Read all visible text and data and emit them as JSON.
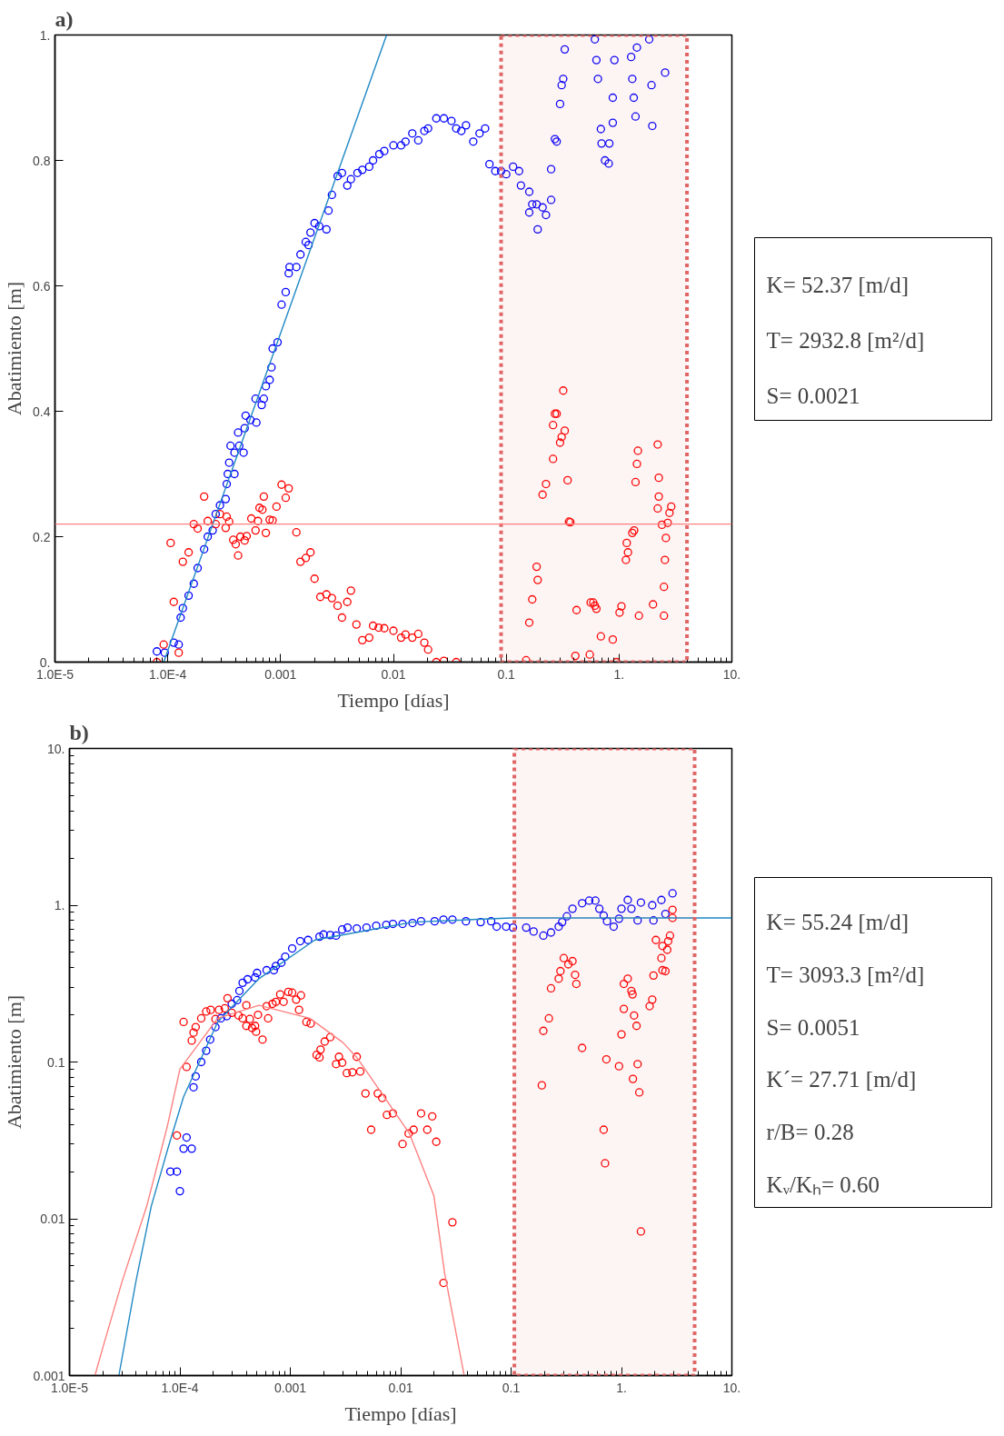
{
  "chart_data": [
    {
      "type": "scatter",
      "title": "a)",
      "xlabel": "Tiempo [días]",
      "ylabel": "Abatimiento [m]",
      "log": "x",
      "xlim": [
        1e-05,
        10
      ],
      "ylim": [
        0,
        1
      ],
      "xticks": [
        {
          "value": 1e-05,
          "label": "1.0E-5"
        },
        {
          "value": 0.0001,
          "label": "1.0E-4"
        },
        0.001,
        0.01,
        0.1,
        {
          "value": 1,
          "label": "1."
        },
        {
          "value": 10,
          "label": "10."
        }
      ],
      "yticks": [
        {
          "value": 0,
          "label": "0."
        },
        0.2,
        0.4,
        0.6,
        0.8,
        {
          "value": 1,
          "label": "1."
        }
      ],
      "series": [
        {
          "marker": "circle",
          "color": "#0000ff",
          "x": [
            8e-05,
            9.4e-05,
            0.000113,
            0.000125,
            0.00013,
            0.000136,
            0.000153,
            0.00017,
            0.000184,
            0.00021,
            0.000226,
            0.00025,
            0.000266,
            0.00029,
            0.000326,
            0.000333,
            0.00034,
            0.00035,
            0.00036,
            0.00039,
            0.00039,
            0.00043,
            0.00047,
            0.00042,
            0.00048,
            0.00049,
            0.00054,
            0.00061,
            0.0006,
            0.00068,
            0.00071,
            0.00074,
            0.0008,
            0.00083,
            0.00085,
            0.00094,
            0.00102,
            0.00111,
            0.00118,
            0.0012,
            0.00138,
            0.0015,
            0.00167,
            0.00177,
            0.00184,
            0.002,
            0.0022,
            0.00255,
            0.00266,
            0.00285,
            0.0032,
            0.0035,
            0.0039,
            0.0042,
            0.0048,
            0.0053,
            0.0061,
            0.0066,
            0.0075,
            0.0083,
            0.01,
            0.0117,
            0.0128,
            0.0147,
            0.0166,
            0.0188,
            0.0203,
            0.024,
            0.028,
            0.0327,
            0.036,
            0.04,
            0.044,
            0.051,
            0.058,
            0.065,
            0.071,
            0.08,
            0.09,
            0.1,
            0.115,
            0.13,
            0.135,
            0.16,
            0.17,
            0.186,
            0.16,
            0.21,
            0.225,
            0.19,
            0.25,
            0.25,
            0.27,
            0.28,
            0.3,
            0.31,
            0.32,
            0.33,
            0.61,
            0.63,
            0.65,
            0.69,
            0.7,
            0.75,
            0.81,
            0.82,
            0.88,
            0.88,
            0.91,
            1.28,
            1.31,
            1.35,
            1.4,
            1.44,
            1.85,
            1.94,
            1.97,
            2.56
          ],
          "values": [
            0.017,
            0.015,
            0.031,
            0.028,
            0.071,
            0.086,
            0.106,
            0.125,
            0.15,
            0.18,
            0.2,
            0.21,
            0.236,
            0.25,
            0.26,
            0.284,
            0.3,
            0.318,
            0.345,
            0.3,
            0.334,
            0.345,
            0.334,
            0.366,
            0.373,
            0.393,
            0.386,
            0.382,
            0.42,
            0.41,
            0.42,
            0.44,
            0.45,
            0.47,
            0.5,
            0.51,
            0.57,
            0.59,
            0.62,
            0.63,
            0.63,
            0.65,
            0.67,
            0.665,
            0.685,
            0.7,
            0.695,
            0.69,
            0.72,
            0.745,
            0.775,
            0.78,
            0.76,
            0.77,
            0.78,
            0.785,
            0.79,
            0.8,
            0.81,
            0.815,
            0.824,
            0.824,
            0.83,
            0.843,
            0.832,
            0.847,
            0.851,
            0.867,
            0.867,
            0.863,
            0.851,
            0.847,
            0.856,
            0.83,
            0.843,
            0.851,
            0.794,
            0.783,
            0.783,
            0.778,
            0.79,
            0.783,
            0.76,
            0.75,
            0.73,
            0.73,
            0.717,
            0.725,
            0.713,
            0.69,
            0.737,
            0.786,
            0.834,
            0.83,
            0.89,
            0.92,
            0.93,
            0.977,
            0.993,
            0.96,
            0.93,
            0.85,
            0.827,
            0.8,
            0.795,
            0.827,
            0.86,
            0.9,
            0.96,
            0.965,
            0.93,
            0.9,
            0.87,
            0.98,
            0.993,
            0.92,
            0.855,
            0.94
          ]
        },
        {
          "marker": "circle",
          "color": "#ff0000",
          "x": [
            8e-05,
            9.2e-05,
            0.000106,
            0.000113,
            0.000125,
            0.000136,
            0.000153,
            0.00017,
            0.000184,
            0.00021,
            0.000226,
            0.000266,
            0.00029,
            0.000326,
            0.000333,
            0.00035,
            0.00038,
            0.0004,
            0.00042,
            0.00044,
            0.00048,
            0.0005,
            0.00055,
            0.0006,
            0.00063,
            0.00065,
            0.00069,
            0.00071,
            0.00074,
            0.0008,
            0.00085,
            0.00092,
            0.00102,
            0.00111,
            0.00118,
            0.00138,
            0.0015,
            0.00167,
            0.00184,
            0.002,
            0.00225,
            0.00255,
            0.00285,
            0.0032,
            0.0035,
            0.0039,
            0.0042,
            0.0047,
            0.0053,
            0.0061,
            0.0066,
            0.0074,
            0.0083,
            0.01,
            0.0117,
            0.0128,
            0.0147,
            0.0166,
            0.0188,
            0.0203,
            0.024,
            0.028,
            0.036,
            0.15,
            0.16,
            0.17,
            0.19,
            0.186,
            0.21,
            0.225,
            0.26,
            0.3,
            0.31,
            0.33,
            0.26,
            0.27,
            0.28,
            0.32,
            0.35,
            0.36,
            0.37,
            0.41,
            0.42,
            0.55,
            0.56,
            0.59,
            0.61,
            0.63,
            0.69,
            0.88,
            0.95,
            1.01,
            1.05,
            1.15,
            1.2,
            1.17,
            1.31,
            1.36,
            1.4,
            1.44,
            1.47,
            1.5,
            2.0,
            2.2,
            2.25,
            2.25,
            2.2,
            2.4,
            2.7,
            2.8,
            2.9,
            2.6,
            2.55,
            2.5,
            2.5
          ],
          "values": [
            0.0,
            0.028,
            0.19,
            0.096,
            0.015,
            0.16,
            0.175,
            0.22,
            0.213,
            0.264,
            0.225,
            0.22,
            0.236,
            0.214,
            0.232,
            0.224,
            0.195,
            0.188,
            0.17,
            0.2,
            0.194,
            0.201,
            0.229,
            0.21,
            0.225,
            0.246,
            0.243,
            0.264,
            0.206,
            0.227,
            0.226,
            0.248,
            0.283,
            0.262,
            0.277,
            0.207,
            0.16,
            0.166,
            0.175,
            0.133,
            0.104,
            0.108,
            0.102,
            0.09,
            0.071,
            0.096,
            0.114,
            0.06,
            0.035,
            0.039,
            0.058,
            0.055,
            0.054,
            0.05,
            0.039,
            0.044,
            0.039,
            0.045,
            0.031,
            0.02,
            0.0,
            0.002,
            0.0,
            0.003,
            0.063,
            0.1,
            0.131,
            0.152,
            0.267,
            0.284,
            0.324,
            0.35,
            0.359,
            0.369,
            0.378,
            0.396,
            0.396,
            0.433,
            0.29,
            0.224,
            0.223,
            0.01,
            0.083,
            0.012,
            0.095,
            0.095,
            0.09,
            0.085,
            0.041,
            0.036,
            0.0,
            0.079,
            0.089,
            0.163,
            0.175,
            0.19,
            0.206,
            0.21,
            0.287,
            0.316,
            0.337,
            0.074,
            0.092,
            0.347,
            0.294,
            0.264,
            0.245,
            0.219,
            0.222,
            0.238,
            0.248,
            0.198,
            0.163,
            0.12,
            0.074
          ]
        },
        {
          "type": "line",
          "color": "#1f88c4",
          "x": [
            9.2e-05,
            0.0087
          ],
          "values": [
            0,
            1
          ]
        }
      ],
      "ref_lines": [
        {
          "axis": "y",
          "value": 0.22,
          "color": "#ff8080"
        }
      ],
      "bands": [
        {
          "axis": "x",
          "from": 0.09,
          "to": 4.0,
          "color": "#e06666"
        }
      ],
      "annotations": [
        "K= 52.37 [m/d]",
        "T= 2932.8 [m²/d]",
        "S= 0.0021"
      ]
    },
    {
      "type": "scatter",
      "title": "b)",
      "xlabel": "Tiempo [días]",
      "ylabel": "Abatimiento [m]",
      "log": "xy",
      "xlim": [
        1e-05,
        10
      ],
      "ylim": [
        0.001,
        10
      ],
      "xticks": [
        {
          "value": 1e-05,
          "label": "1.0E-5"
        },
        {
          "value": 0.0001,
          "label": "1.0E-4"
        },
        0.001,
        0.01,
        0.1,
        {
          "value": 1,
          "label": "1."
        },
        {
          "value": 10,
          "label": "10."
        }
      ],
      "yticks": [
        0.001,
        0.01,
        0.1,
        {
          "value": 1,
          "label": "1."
        },
        {
          "value": 10,
          "label": "10."
        }
      ],
      "series": [
        {
          "marker": "circle",
          "color": "#0000ff",
          "x": [
            8.2e-05,
            9.4e-05,
            0.0001,
            0.000108,
            0.000115,
            0.000128,
            0.000133,
            0.000139,
            0.000156,
            0.000173,
            0.000188,
            0.00021,
            0.000235,
            0.000266,
            0.000295,
            0.00033,
            0.000346,
            0.00037,
            0.00041,
            0.00048,
            0.0005,
            0.00061,
            0.00071,
            0.00074,
            0.00083,
            0.0009,
            0.00104,
            0.00123,
            0.00145,
            0.00184,
            0.002,
            0.0023,
            0.0026,
            0.00295,
            0.0033,
            0.004,
            0.0049,
            0.006,
            0.0074,
            0.0085,
            0.0104,
            0.0128,
            0.0153,
            0.0203,
            0.0244,
            0.0294,
            0.039,
            0.053,
            0.066,
            0.074,
            0.09,
            0.104,
            0.137,
            0.16,
            0.196,
            0.23,
            0.27,
            0.29,
            0.32,
            0.36,
            0.44,
            0.51,
            0.58,
            0.63,
            0.69,
            0.74,
            0.85,
            0.95,
            1.0,
            1.14,
            1.23,
            1.4,
            1.5,
            1.9,
            1.95,
            2.3,
            2.5,
            2.9
          ],
          "values": [
            0.02,
            0.02,
            0.015,
            0.028,
            0.033,
            0.028,
            0.069,
            0.081,
            0.1,
            0.118,
            0.139,
            0.167,
            0.19,
            0.196,
            0.235,
            0.248,
            0.284,
            0.32,
            0.337,
            0.346,
            0.37,
            0.385,
            0.385,
            0.41,
            0.43,
            0.47,
            0.53,
            0.59,
            0.6,
            0.63,
            0.65,
            0.645,
            0.64,
            0.7,
            0.72,
            0.71,
            0.72,
            0.74,
            0.75,
            0.76,
            0.76,
            0.77,
            0.79,
            0.79,
            0.81,
            0.81,
            0.79,
            0.78,
            0.79,
            0.73,
            0.73,
            0.72,
            0.72,
            0.68,
            0.64,
            0.67,
            0.73,
            0.78,
            0.85,
            0.95,
            1.03,
            1.07,
            1.07,
            0.95,
            0.86,
            0.79,
            0.73,
            0.82,
            0.95,
            1.08,
            0.95,
            0.8,
            1.04,
            1.0,
            0.8,
            1.08,
            0.88,
            1.19
          ]
        },
        {
          "marker": "circle",
          "color": "#ff0000",
          "x": [
            9.4e-05,
            0.000108,
            0.000115,
            0.000128,
            0.000133,
            0.000139,
            0.000156,
            0.000173,
            0.00019,
            0.00021,
            0.000226,
            0.000255,
            0.00027,
            0.000295,
            0.00034,
            0.00037,
            0.0004,
            0.0004,
            0.00043,
            0.00045,
            0.00048,
            0.00049,
            0.00051,
            0.00056,
            0.00061,
            0.00063,
            0.00069,
            0.00074,
            0.00081,
            0.00087,
            0.00096,
            0.00104,
            0.00113,
            0.00125,
            0.0012,
            0.0014,
            0.00153,
            0.00173,
            0.00184,
            0.00188,
            0.00205,
            0.0023,
            0.0026,
            0.00276,
            0.00295,
            0.00325,
            0.00365,
            0.004,
            0.0043,
            0.0048,
            0.0054,
            0.0062,
            0.0068,
            0.0075,
            0.0085,
            0.0104,
            0.0118,
            0.0131,
            0.0153,
            0.0174,
            0.0193,
            0.021,
            0.0294,
            0.0244,
            0.19,
            0.196,
            0.22,
            0.23,
            0.27,
            0.28,
            0.3,
            0.33,
            0.36,
            0.38,
            0.39,
            0.44,
            0.69,
            0.71,
            0.73,
            0.95,
            1.0,
            1.05,
            1.05,
            1.14,
            1.23,
            1.26,
            1.3,
            1.37,
            1.4,
            1.27,
            1.45,
            1.5,
            1.8,
            1.9,
            1.95,
            2.05,
            2.3,
            2.35,
            2.5,
            2.35,
            2.6,
            2.65,
            2.75,
            2.9,
            2.9
          ],
          "values": [
            0.034,
            0.18,
            0.093,
            0.137,
            0.154,
            0.167,
            0.19,
            0.21,
            0.215,
            0.188,
            0.215,
            0.22,
            0.255,
            0.206,
            0.198,
            0.19,
            0.23,
            0.17,
            0.188,
            0.165,
            0.17,
            0.156,
            0.2,
            0.139,
            0.227,
            0.19,
            0.235,
            0.242,
            0.27,
            0.242,
            0.28,
            0.277,
            0.25,
            0.266,
            0.215,
            0.18,
            0.176,
            0.111,
            0.107,
            0.12,
            0.135,
            0.144,
            0.097,
            0.108,
            0.099,
            0.085,
            0.086,
            0.108,
            0.087,
            0.063,
            0.037,
            0.063,
            0.059,
            0.046,
            0.047,
            0.03,
            0.035,
            0.037,
            0.047,
            0.037,
            0.045,
            0.031,
            0.0095,
            0.0039,
            0.071,
            0.158,
            0.19,
            0.295,
            0.34,
            0.38,
            0.46,
            0.42,
            0.44,
            0.36,
            0.315,
            0.123,
            0.037,
            0.0226,
            0.104,
            0.094,
            0.15,
            0.218,
            0.315,
            0.34,
            0.284,
            0.27,
            0.198,
            0.17,
            0.097,
            0.078,
            0.064,
            0.0083,
            0.227,
            0.25,
            0.356,
            0.6,
            0.46,
            0.385,
            0.38,
            0.55,
            0.52,
            0.59,
            0.64,
            0.935,
            0.83
          ]
        },
        {
          "type": "line",
          "color": "#1f88c4",
          "x": [
            2.8e-05,
            4e-05,
            5.5e-05,
            8e-05,
            0.000108,
            0.00022,
            0.00052,
            0.00167,
            0.0128,
            0.1,
            10
          ],
          "values": [
            0.001,
            0.004,
            0.012,
            0.03,
            0.06,
            0.18,
            0.34,
            0.6,
            0.78,
            0.83,
            0.83
          ]
        },
        {
          "type": "line",
          "color": "#ff8080",
          "x": [
            1.7e-05,
            2e-05,
            3e-05,
            5e-05,
            7.7e-05,
            0.0001,
            0.00022,
            0.00052,
            0.0015,
            0.003,
            0.004,
            0.006,
            0.012,
            0.02,
            0.025,
            0.0376
          ],
          "values": [
            0.001,
            0.0015,
            0.004,
            0.012,
            0.039,
            0.09,
            0.19,
            0.23,
            0.19,
            0.133,
            0.107,
            0.071,
            0.035,
            0.014,
            0.0045,
            0.001
          ]
        }
      ],
      "bands": [
        {
          "axis": "x",
          "from": 0.107,
          "to": 4.6,
          "color": "#e06666"
        }
      ],
      "annotations": [
        "K= 55.24 [m/d]",
        "T= 3093.3 [m²/d]",
        "S= 0.0051",
        "K´= 27.71 [m/d]",
        "r/B= 0.28",
        "Kᵥ/Kₕ= 0.60"
      ]
    }
  ]
}
